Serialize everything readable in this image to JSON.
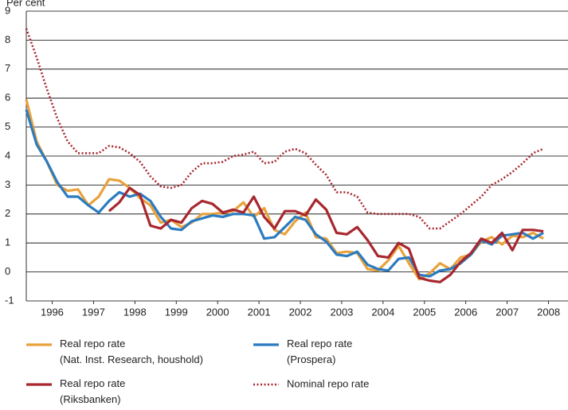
{
  "chart_data": {
    "type": "line",
    "y_label": "Per cent",
    "x": [
      1995.875,
      1996.125,
      1996.375,
      1996.625,
      1996.875,
      1997.125,
      1997.375,
      1997.625,
      1997.875,
      1998.125,
      1998.375,
      1998.625,
      1998.875,
      1999.125,
      1999.375,
      1999.625,
      1999.875,
      2000.125,
      2000.375,
      2000.625,
      2000.875,
      2001.125,
      2001.375,
      2001.625,
      2001.875,
      2002.125,
      2002.375,
      2002.625,
      2002.875,
      2003.125,
      2003.375,
      2003.625,
      2003.875,
      2004.125,
      2004.375,
      2004.625,
      2004.875,
      2005.125,
      2005.375,
      2005.625,
      2005.875,
      2006.125,
      2006.375,
      2006.625,
      2006.875,
      2007.125,
      2007.375,
      2007.625,
      2007.875,
      2008.125,
      2008.375
    ],
    "xlim": [
      1995.875,
      2008.97
    ],
    "xticks": [
      {
        "value": 1996.5,
        "label": "1996"
      },
      {
        "value": 1997.5,
        "label": "1997"
      },
      {
        "value": 1998.5,
        "label": "1998"
      },
      {
        "value": 1999.5,
        "label": "1999"
      },
      {
        "value": 2000.5,
        "label": "2000"
      },
      {
        "value": 2001.5,
        "label": "2001"
      },
      {
        "value": 2002.5,
        "label": "2002"
      },
      {
        "value": 2003.5,
        "label": "2003"
      },
      {
        "value": 2004.5,
        "label": "2004"
      },
      {
        "value": 2005.5,
        "label": "2005"
      },
      {
        "value": 2006.5,
        "label": "2006"
      },
      {
        "value": 2007.5,
        "label": "2007"
      },
      {
        "value": 2008.5,
        "label": "2008"
      }
    ],
    "ylim": [
      -1,
      9
    ],
    "yticks": [
      -1,
      0,
      1,
      2,
      3,
      4,
      5,
      6,
      7,
      8,
      9
    ],
    "grid": true,
    "series": [
      {
        "name": "Real repo rate\n(Nat. Inst. Research, houshold)",
        "color": "#e9a23b",
        "linestyle": "solid",
        "values": [
          5.95,
          4.5,
          3.8,
          3.0,
          2.8,
          2.85,
          2.3,
          2.6,
          3.2,
          3.15,
          2.9,
          2.55,
          2.3,
          1.7,
          1.8,
          1.55,
          1.7,
          2.0,
          2.0,
          2.05,
          2.1,
          2.4,
          1.9,
          2.2,
          1.45,
          1.3,
          1.75,
          2.05,
          1.2,
          1.15,
          0.65,
          0.7,
          0.65,
          0.1,
          0.05,
          0.4,
          0.9,
          0.3,
          -0.25,
          -0.05,
          0.3,
          0.1,
          0.5,
          0.6,
          1.05,
          1.2,
          0.95,
          1.25,
          1.2,
          1.35,
          1.15
        ]
      },
      {
        "name": "Real repo rate\n(Prospera)",
        "color": "#2b7bc0",
        "linestyle": "solid",
        "values": [
          5.6,
          4.4,
          3.8,
          3.1,
          2.6,
          2.6,
          2.3,
          2.05,
          2.45,
          2.75,
          2.6,
          2.7,
          2.45,
          1.9,
          1.5,
          1.45,
          1.75,
          1.85,
          1.95,
          1.9,
          2.0,
          2.0,
          1.95,
          1.15,
          1.2,
          1.55,
          1.9,
          1.8,
          1.3,
          1.05,
          0.6,
          0.55,
          0.7,
          0.25,
          0.1,
          0.05,
          0.45,
          0.5,
          -0.1,
          -0.15,
          0.05,
          0.1,
          0.3,
          0.6,
          1.1,
          0.95,
          1.25,
          1.3,
          1.35,
          1.15,
          1.35
        ]
      },
      {
        "name": "Real repo rate\n(Riksbanken)",
        "color": "#a8272f",
        "linestyle": "solid",
        "values": [
          null,
          null,
          null,
          null,
          null,
          null,
          null,
          null,
          2.1,
          2.4,
          2.9,
          2.65,
          1.6,
          1.5,
          1.8,
          1.7,
          2.2,
          2.45,
          2.35,
          2.05,
          2.15,
          2.05,
          2.6,
          1.9,
          1.5,
          2.1,
          2.1,
          1.95,
          2.5,
          2.15,
          1.35,
          1.3,
          1.55,
          1.1,
          0.55,
          0.5,
          1.0,
          0.8,
          -0.2,
          -0.3,
          -0.35,
          -0.1,
          0.35,
          0.65,
          1.15,
          1.0,
          1.35,
          0.75,
          1.45,
          1.45,
          1.4
        ]
      },
      {
        "name": "Nominal repo rate",
        "color": "#a8272f",
        "linestyle": "dotted",
        "values": [
          8.4,
          7.4,
          6.3,
          5.3,
          4.5,
          4.1,
          4.1,
          4.1,
          4.35,
          4.3,
          4.1,
          3.8,
          3.3,
          2.95,
          2.9,
          3.0,
          3.45,
          3.75,
          3.75,
          3.8,
          4.0,
          4.05,
          4.15,
          3.75,
          3.8,
          4.15,
          4.25,
          4.1,
          3.7,
          3.35,
          2.75,
          2.75,
          2.6,
          2.05,
          2.0,
          2.0,
          2.0,
          2.0,
          1.9,
          1.5,
          1.5,
          1.75,
          2.0,
          2.3,
          2.6,
          3.0,
          3.2,
          3.45,
          3.75,
          4.1,
          4.25
        ]
      }
    ]
  }
}
